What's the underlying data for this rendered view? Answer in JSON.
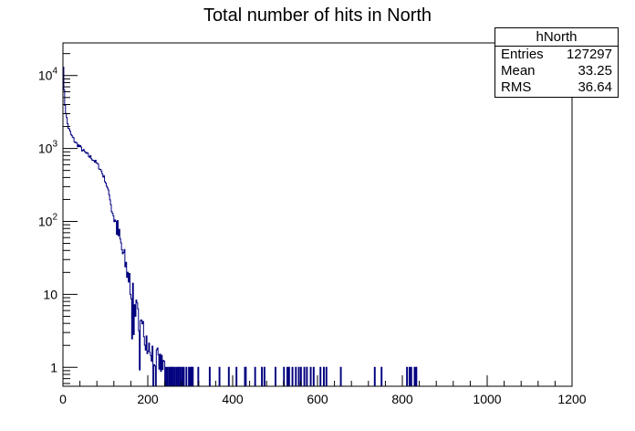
{
  "chart_data": {
    "type": "histogram",
    "title": "Total number of hits in North",
    "xlabel": "",
    "ylabel": "",
    "xlim": [
      0,
      1200
    ],
    "ylim": [
      0.55,
      28000
    ],
    "yscale": "log",
    "x_ticks": [
      "0",
      "200",
      "400",
      "600",
      "800",
      "1000",
      "1200"
    ],
    "x_tick_values": [
      0,
      200,
      400,
      600,
      800,
      1000,
      1200
    ],
    "y_ticks": [
      {
        "value": 1,
        "base": "1",
        "exp": ""
      },
      {
        "value": 10,
        "base": "10",
        "exp": ""
      },
      {
        "value": 100,
        "base": "10",
        "exp": "2"
      },
      {
        "value": 1000,
        "base": "10",
        "exp": "3"
      },
      {
        "value": 10000,
        "base": "10",
        "exp": "4"
      }
    ],
    "line_color": "#00007f",
    "profile": [
      [
        1,
        14000
      ],
      [
        2,
        9000
      ],
      [
        3,
        6000
      ],
      [
        5,
        4000
      ],
      [
        8,
        2800
      ],
      [
        12,
        2000
      ],
      [
        20,
        1500
      ],
      [
        30,
        1200
      ],
      [
        40,
        1050
      ],
      [
        50,
        900
      ],
      [
        60,
        800
      ],
      [
        70,
        720
      ],
      [
        80,
        620
      ],
      [
        90,
        500
      ],
      [
        100,
        360
      ],
      [
        110,
        220
      ],
      [
        120,
        120
      ],
      [
        130,
        70
      ],
      [
        140,
        38
      ],
      [
        150,
        22
      ],
      [
        160,
        13
      ],
      [
        170,
        7
      ],
      [
        180,
        4.5
      ],
      [
        190,
        3
      ],
      [
        200,
        2.2
      ],
      [
        210,
        1.7
      ],
      [
        220,
        1.3
      ],
      [
        230,
        1.1
      ],
      [
        240,
        1
      ]
    ],
    "sparse_hits": [
      242,
      246,
      250,
      252,
      256,
      258,
      262,
      266,
      270,
      272,
      276,
      280,
      284,
      290,
      296,
      300,
      302,
      305,
      318,
      345,
      368,
      390,
      408,
      428,
      430,
      452,
      468,
      474,
      500,
      520,
      528,
      532,
      540,
      548,
      555,
      560,
      568,
      574,
      583,
      590,
      606,
      614,
      620,
      654,
      734,
      750,
      810,
      816,
      820,
      828,
      832
    ],
    "stats": {
      "name": "hNorth",
      "entries_label": "Entries",
      "entries": "127297",
      "mean_label": "Mean",
      "mean": "33.25",
      "rms_label": "RMS",
      "rms": "36.64"
    }
  }
}
